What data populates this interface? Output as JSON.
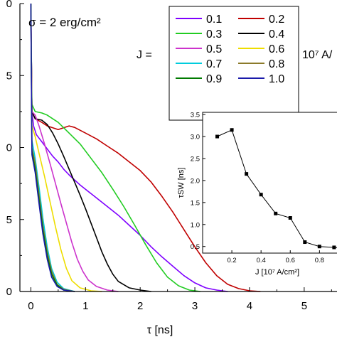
{
  "chart_data": [
    {
      "type": "line",
      "xlabel": "τ [ns]",
      "ylabel": "",
      "xlim": [
        -0.2,
        5.6
      ],
      "ylim": [
        0,
        4.0
      ],
      "x_ticks": [
        "0",
        "1",
        "2",
        "3",
        "4",
        "5"
      ],
      "y_ticks": [
        "0",
        "5",
        "0",
        "5",
        "0"
      ],
      "annotation": "σ = 2 erg/cm²",
      "legend_title": "J =",
      "legend_unit": "10⁷ A/",
      "legend_placement": "top-right",
      "grid": false,
      "series": [
        {
          "name": "0.1",
          "color": "#7f00ff",
          "points": [
            [
              0,
              4.0
            ],
            [
              0.02,
              2.5
            ],
            [
              0.05,
              2.3
            ],
            [
              0.1,
              2.18
            ],
            [
              0.2,
              2.08
            ],
            [
              0.3,
              1.98
            ],
            [
              0.4,
              1.88
            ],
            [
              0.5,
              1.8
            ],
            [
              0.6,
              1.7
            ],
            [
              0.7,
              1.62
            ],
            [
              0.8,
              1.55
            ],
            [
              0.9,
              1.48
            ],
            [
              1.0,
              1.42
            ],
            [
              1.2,
              1.3
            ],
            [
              1.4,
              1.18
            ],
            [
              1.6,
              1.06
            ],
            [
              1.8,
              0.92
            ],
            [
              2.0,
              0.78
            ],
            [
              2.2,
              0.62
            ],
            [
              2.4,
              0.48
            ],
            [
              2.6,
              0.35
            ],
            [
              2.8,
              0.22
            ],
            [
              3.0,
              0.12
            ],
            [
              3.2,
              0.05
            ],
            [
              3.4,
              0.02
            ],
            [
              3.6,
              0.0
            ]
          ]
        },
        {
          "name": "0.2",
          "color": "#c00000",
          "points": [
            [
              0,
              4.0
            ],
            [
              0.02,
              2.5
            ],
            [
              0.08,
              2.4
            ],
            [
              0.2,
              2.35
            ],
            [
              0.3,
              2.3
            ],
            [
              0.5,
              2.25
            ],
            [
              0.7,
              2.3
            ],
            [
              0.8,
              2.28
            ],
            [
              1.0,
              2.2
            ],
            [
              1.2,
              2.12
            ],
            [
              1.4,
              2.02
            ],
            [
              1.6,
              1.92
            ],
            [
              1.8,
              1.8
            ],
            [
              2.0,
              1.68
            ],
            [
              2.2,
              1.52
            ],
            [
              2.4,
              1.32
            ],
            [
              2.6,
              1.1
            ],
            [
              2.8,
              0.86
            ],
            [
              3.0,
              0.62
            ],
            [
              3.2,
              0.4
            ],
            [
              3.4,
              0.22
            ],
            [
              3.6,
              0.1
            ],
            [
              3.8,
              0.04
            ],
            [
              4.0,
              0.01
            ],
            [
              4.2,
              0.0
            ]
          ]
        },
        {
          "name": "0.3",
          "color": "#22cc22",
          "points": [
            [
              0,
              4.0
            ],
            [
              0.02,
              2.6
            ],
            [
              0.08,
              2.5
            ],
            [
              0.2,
              2.48
            ],
            [
              0.3,
              2.45
            ],
            [
              0.5,
              2.35
            ],
            [
              0.7,
              2.2
            ],
            [
              0.9,
              2.05
            ],
            [
              1.1,
              1.85
            ],
            [
              1.3,
              1.65
            ],
            [
              1.5,
              1.42
            ],
            [
              1.7,
              1.18
            ],
            [
              1.9,
              0.92
            ],
            [
              2.1,
              0.65
            ],
            [
              2.3,
              0.4
            ],
            [
              2.5,
              0.2
            ],
            [
              2.7,
              0.08
            ],
            [
              2.9,
              0.02
            ],
            [
              3.1,
              0.0
            ]
          ]
        },
        {
          "name": "0.4",
          "color": "#000000",
          "points": [
            [
              0,
              4.0
            ],
            [
              0.02,
              2.5
            ],
            [
              0.08,
              2.4
            ],
            [
              0.2,
              2.38
            ],
            [
              0.3,
              2.32
            ],
            [
              0.4,
              2.2
            ],
            [
              0.5,
              2.05
            ],
            [
              0.6,
              1.88
            ],
            [
              0.7,
              1.7
            ],
            [
              0.8,
              1.52
            ],
            [
              0.9,
              1.34
            ],
            [
              1.0,
              1.15
            ],
            [
              1.1,
              0.95
            ],
            [
              1.2,
              0.75
            ],
            [
              1.3,
              0.55
            ],
            [
              1.4,
              0.38
            ],
            [
              1.5,
              0.24
            ],
            [
              1.6,
              0.14
            ],
            [
              1.8,
              0.05
            ],
            [
              2.0,
              0.02
            ],
            [
              2.2,
              0.0
            ]
          ]
        },
        {
          "name": "0.5",
          "color": "#cc33cc",
          "points": [
            [
              0,
              4.0
            ],
            [
              0.02,
              2.5
            ],
            [
              0.08,
              2.45
            ],
            [
              0.15,
              2.3
            ],
            [
              0.25,
              2.05
            ],
            [
              0.35,
              1.78
            ],
            [
              0.45,
              1.5
            ],
            [
              0.55,
              1.22
            ],
            [
              0.65,
              0.95
            ],
            [
              0.75,
              0.68
            ],
            [
              0.85,
              0.45
            ],
            [
              0.95,
              0.28
            ],
            [
              1.05,
              0.16
            ],
            [
              1.2,
              0.07
            ],
            [
              1.4,
              0.02
            ],
            [
              1.6,
              0.0
            ]
          ]
        },
        {
          "name": "0.6",
          "color": "#eedd00",
          "points": [
            [
              0,
              4.0
            ],
            [
              0.02,
              2.3
            ],
            [
              0.08,
              2.15
            ],
            [
              0.15,
              1.92
            ],
            [
              0.25,
              1.6
            ],
            [
              0.35,
              1.25
            ],
            [
              0.45,
              0.9
            ],
            [
              0.55,
              0.58
            ],
            [
              0.65,
              0.32
            ],
            [
              0.75,
              0.15
            ],
            [
              0.9,
              0.05
            ],
            [
              1.1,
              0.01
            ],
            [
              1.3,
              0.0
            ]
          ]
        },
        {
          "name": "0.7",
          "color": "#00ccdd",
          "points": [
            [
              0,
              4.0
            ],
            [
              0.02,
              2.1
            ],
            [
              0.08,
              1.85
            ],
            [
              0.15,
              1.45
            ],
            [
              0.22,
              1.02
            ],
            [
              0.3,
              0.62
            ],
            [
              0.38,
              0.32
            ],
            [
              0.48,
              0.13
            ],
            [
              0.6,
              0.04
            ],
            [
              0.8,
              0.0
            ]
          ]
        },
        {
          "name": "0.8",
          "color": "#8b7a2a",
          "points": [
            [
              0,
              4.0
            ],
            [
              0.02,
              2.0
            ],
            [
              0.08,
              1.78
            ],
            [
              0.15,
              1.35
            ],
            [
              0.22,
              0.92
            ],
            [
              0.3,
              0.55
            ],
            [
              0.38,
              0.28
            ],
            [
              0.48,
              0.1
            ],
            [
              0.6,
              0.03
            ],
            [
              0.8,
              0.0
            ]
          ]
        },
        {
          "name": "0.9",
          "color": "#007a00",
          "points": [
            [
              0,
              4.0
            ],
            [
              0.02,
              1.95
            ],
            [
              0.08,
              1.7
            ],
            [
              0.15,
              1.28
            ],
            [
              0.22,
              0.86
            ],
            [
              0.3,
              0.5
            ],
            [
              0.38,
              0.24
            ],
            [
              0.48,
              0.09
            ],
            [
              0.6,
              0.02
            ],
            [
              0.8,
              0.0
            ]
          ]
        },
        {
          "name": "1.0",
          "color": "#1a1aaa",
          "points": [
            [
              0,
              4.0
            ],
            [
              0.02,
              1.9
            ],
            [
              0.08,
              1.65
            ],
            [
              0.15,
              1.22
            ],
            [
              0.22,
              0.8
            ],
            [
              0.3,
              0.45
            ],
            [
              0.38,
              0.2
            ],
            [
              0.48,
              0.07
            ],
            [
              0.6,
              0.02
            ],
            [
              0.8,
              0.0
            ]
          ]
        }
      ]
    },
    {
      "type": "line",
      "xlabel": "J [10⁷ A/cm²]",
      "ylabel": "τSW [ns]",
      "xlim": [
        0,
        0.92
      ],
      "ylim": [
        0.35,
        3.55
      ],
      "x_ticks": [
        "0.2",
        "0.4",
        "0.6",
        "0.8"
      ],
      "y_ticks": [
        "0.5",
        "1.0",
        "1.5",
        "2.0",
        "2.5",
        "3.0",
        "3.5"
      ],
      "placement": "inset-right",
      "series": [
        {
          "name": "",
          "x": [
            0.1,
            0.2,
            0.3,
            0.4,
            0.5,
            0.6,
            0.7,
            0.8,
            0.9,
            1.0
          ],
          "y": [
            3.0,
            3.15,
            2.15,
            1.68,
            1.25,
            1.15,
            0.6,
            0.5,
            0.48,
            0.45
          ]
        }
      ]
    }
  ]
}
